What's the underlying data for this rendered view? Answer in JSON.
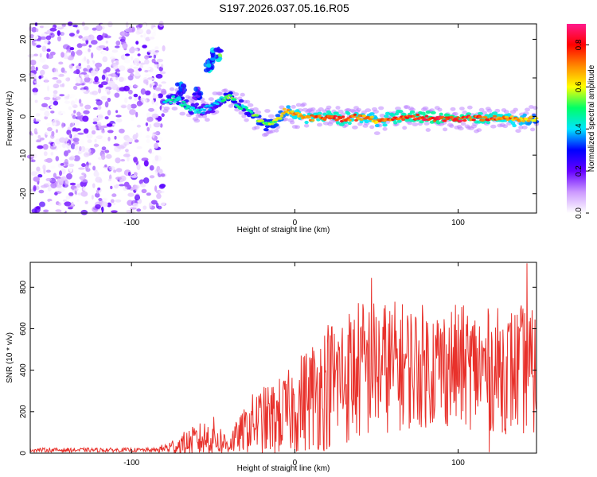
{
  "figure": {
    "title": "S197.2026.037.05.16.R05"
  },
  "chart_data": [
    {
      "type": "heatmap",
      "title": "S197.2026.037.05.16.R05",
      "xlabel": "Height of straight line (km)",
      "ylabel": "Frequency (Hz)",
      "xlim": [
        -162,
        148
      ],
      "ylim": [
        -25,
        24
      ],
      "xticks": [
        -100,
        0,
        100
      ],
      "yticks": [
        -20,
        -10,
        0,
        10,
        20
      ],
      "colorbar": {
        "label": "Normalized spectral amplitude",
        "range": [
          0.0,
          0.9
        ],
        "ticks": [
          "0.0",
          "0.2",
          "0.4",
          "0.6",
          "0.8"
        ],
        "colors": [
          "#ffffff",
          "#cc99ff",
          "#6600ff",
          "#0000ff",
          "#00e5ff",
          "#00ff66",
          "#ffff00",
          "#ff8800",
          "#ff0000",
          "#ff1a8c"
        ]
      },
      "noise_region_x": [
        -162,
        -80
      ],
      "ridge": [
        {
          "x": -80,
          "f": 4.0,
          "a": 0.45
        },
        {
          "x": -72,
          "f": 4.5,
          "a": 0.5
        },
        {
          "x": -64,
          "f": 2.0,
          "a": 0.45
        },
        {
          "x": -56,
          "f": 1.5,
          "a": 0.4
        },
        {
          "x": -48,
          "f": 3.5,
          "a": 0.4
        },
        {
          "x": -40,
          "f": 5.5,
          "a": 0.55
        },
        {
          "x": -35,
          "f": 3.0,
          "a": 0.5
        },
        {
          "x": -30,
          "f": 2.0,
          "a": 0.45
        },
        {
          "x": -24,
          "f": 0.0,
          "a": 0.6
        },
        {
          "x": -18,
          "f": -2.0,
          "a": 0.55
        },
        {
          "x": -12,
          "f": -1.5,
          "a": 0.6
        },
        {
          "x": -6,
          "f": 1.5,
          "a": 0.65
        },
        {
          "x": 0,
          "f": 0.5,
          "a": 0.75
        },
        {
          "x": 10,
          "f": -0.5,
          "a": 0.75
        },
        {
          "x": 20,
          "f": 0.0,
          "a": 0.8
        },
        {
          "x": 30,
          "f": -0.5,
          "a": 0.8
        },
        {
          "x": 40,
          "f": 0.0,
          "a": 0.75
        },
        {
          "x": 50,
          "f": -1.0,
          "a": 0.7
        },
        {
          "x": 60,
          "f": -0.5,
          "a": 0.8
        },
        {
          "x": 70,
          "f": 0.0,
          "a": 0.82
        },
        {
          "x": 80,
          "f": -0.5,
          "a": 0.85
        },
        {
          "x": 90,
          "f": -0.5,
          "a": 0.85
        },
        {
          "x": 100,
          "f": -0.5,
          "a": 0.85
        },
        {
          "x": 110,
          "f": -0.5,
          "a": 0.8
        },
        {
          "x": 120,
          "f": -0.5,
          "a": 0.8
        },
        {
          "x": 130,
          "f": -0.5,
          "a": 0.75
        },
        {
          "x": 140,
          "f": -1.0,
          "a": 0.7
        },
        {
          "x": 148,
          "f": -0.5,
          "a": 0.6
        }
      ],
      "upper_branch": [
        {
          "x": -70,
          "f": 7.0,
          "a": 0.4
        },
        {
          "x": -60,
          "f": 6.0,
          "a": 0.35
        },
        {
          "x": -52,
          "f": 13.0,
          "a": 0.4
        },
        {
          "x": -48,
          "f": 16.0,
          "a": 0.5
        }
      ]
    },
    {
      "type": "line",
      "xlabel": "Height of straight line (km)",
      "ylabel": "SNR (10 * v/v)",
      "xlim": [
        -162,
        148
      ],
      "ylim": [
        0,
        920
      ],
      "xticks": [
        -100,
        0,
        100
      ],
      "yticks": [
        0,
        200,
        400,
        600,
        800
      ],
      "color": "#e8312b",
      "envelope": [
        {
          "x": -162,
          "base": 15,
          "amp": 10
        },
        {
          "x": -85,
          "base": 15,
          "amp": 10
        },
        {
          "x": -75,
          "base": 30,
          "amp": 40
        },
        {
          "x": -60,
          "base": 60,
          "amp": 80
        },
        {
          "x": -50,
          "base": 80,
          "amp": 100
        },
        {
          "x": -42,
          "base": 40,
          "amp": 60
        },
        {
          "x": -35,
          "base": 80,
          "amp": 80
        },
        {
          "x": -25,
          "base": 150,
          "amp": 150
        },
        {
          "x": -15,
          "base": 160,
          "amp": 180
        },
        {
          "x": -5,
          "base": 190,
          "amp": 200
        },
        {
          "x": 5,
          "base": 250,
          "amp": 250
        },
        {
          "x": 20,
          "base": 330,
          "amp": 320
        },
        {
          "x": 40,
          "base": 400,
          "amp": 350
        },
        {
          "x": 60,
          "base": 420,
          "amp": 320
        },
        {
          "x": 80,
          "base": 420,
          "amp": 300
        },
        {
          "x": 100,
          "base": 420,
          "amp": 300
        },
        {
          "x": 120,
          "base": 400,
          "amp": 300
        },
        {
          "x": 140,
          "base": 400,
          "amp": 320
        },
        {
          "x": 148,
          "base": 380,
          "amp": 300
        }
      ],
      "peaks": [
        {
          "x": 142,
          "y": 915
        },
        {
          "x": 47,
          "y": 845
        },
        {
          "x": 119,
          "y": 5
        }
      ]
    }
  ]
}
